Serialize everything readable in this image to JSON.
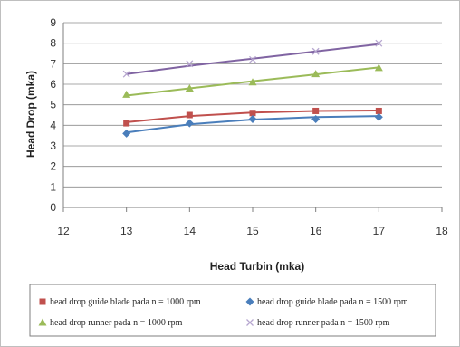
{
  "chart_data": {
    "type": "line",
    "title": "",
    "xlabel": "Head Turbin (mka)",
    "ylabel": "Head Drop (mka)",
    "xlim": [
      12,
      18
    ],
    "ylim": [
      0,
      9
    ],
    "x_ticks": [
      12,
      13,
      14,
      15,
      16,
      17,
      18
    ],
    "y_ticks": [
      0,
      1,
      2,
      3,
      4,
      5,
      6,
      7,
      8,
      9
    ],
    "grid": "horizontal",
    "legend_position": "bottom",
    "x": [
      13,
      14,
      15,
      16,
      17
    ],
    "series": [
      {
        "name": "head drop guide blade pada n = 1000 rpm",
        "marker": "square",
        "color": "#c0504d",
        "values": [
          4.1,
          4.5,
          4.6,
          4.7,
          4.7
        ],
        "fit": [
          4.15,
          4.45,
          4.62,
          4.7,
          4.72
        ]
      },
      {
        "name": "head drop guide blade pada n = 1500 rpm",
        "marker": "diamond",
        "color": "#4a7ebb",
        "values": [
          3.6,
          4.1,
          4.3,
          4.3,
          4.4
        ],
        "fit": [
          3.65,
          4.05,
          4.28,
          4.4,
          4.45
        ]
      },
      {
        "name": "head drop runner pada n = 1000 rpm",
        "marker": "triangle",
        "color": "#9bbb59",
        "values": [
          5.5,
          5.8,
          6.1,
          6.5,
          6.8
        ],
        "fit": [
          5.45,
          5.8,
          6.15,
          6.48,
          6.82
        ]
      },
      {
        "name": "head drop runner pada n = 1500 rpm",
        "marker": "x",
        "color": "#8064a2",
        "values": [
          6.5,
          7.0,
          7.2,
          7.6,
          8.0
        ],
        "fit": [
          6.5,
          6.9,
          7.25,
          7.6,
          7.95
        ]
      }
    ]
  }
}
